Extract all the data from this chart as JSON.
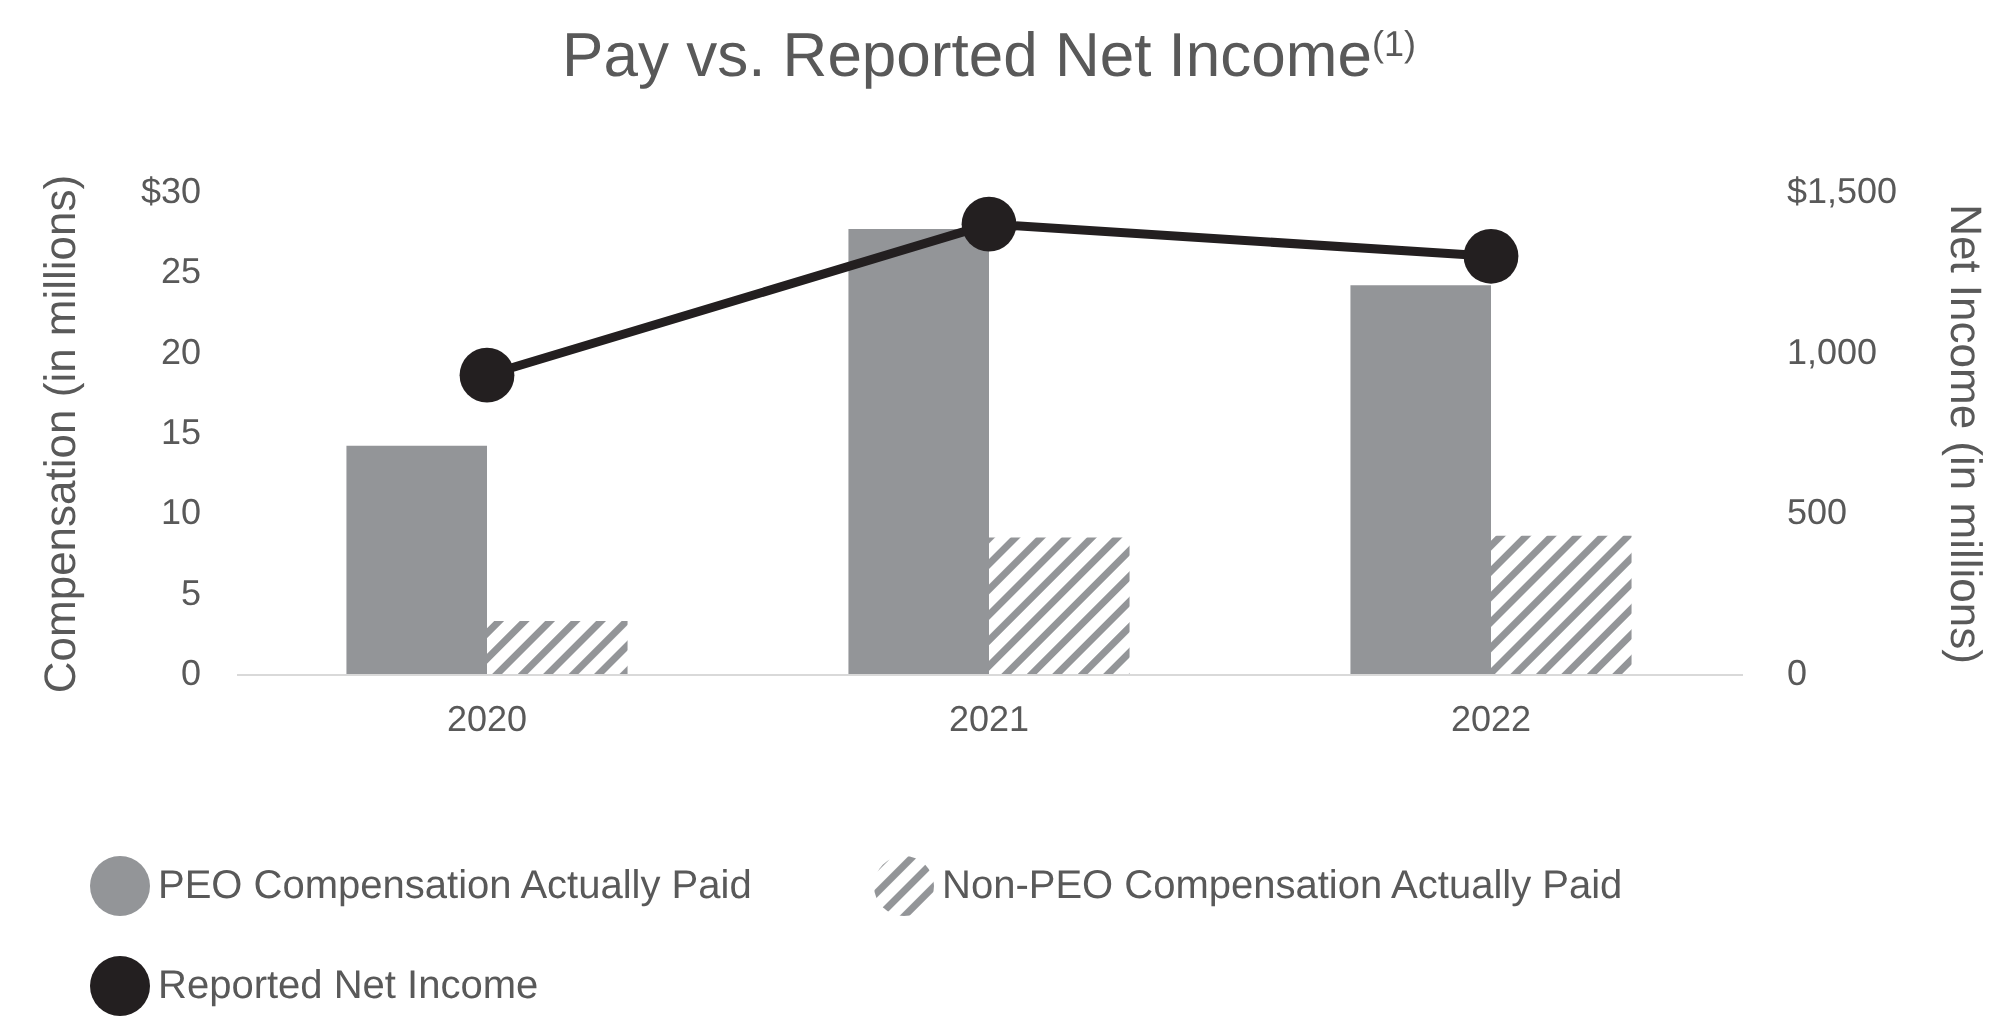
{
  "chart_data": {
    "type": "bar",
    "title": "Pay vs. Reported Net Income$^{(1)}$",
    "ylabel": "Compensation (in millions)",
    "y2label": "Net Income (in millions)",
    "categories": [
      "2020",
      "2021",
      "2022"
    ],
    "series": [
      {
        "name": "PEO Compensation Actually Paid",
        "color": "#939598",
        "values": [
          14.2,
          27.7,
          24.2
        ]
      },
      {
        "name": "Non-PEO Compensation Actually Paid",
        "color": "#939598",
        "values": [
          3.3,
          8.5,
          8.6
        ]
      },
      {
        "name": "Reported Net Income",
        "type": "line",
        "axis": "y2",
        "color": "#231f20",
        "values": [
          930,
          1400,
          1300
        ]
      }
    ],
    "ylim": [
      0,
      30
    ],
    "yticks": [
      0,
      5,
      10,
      15,
      20,
      25,
      {
        "value": 30,
        "label": "$30"
      }
    ],
    "y2lim": [
      0,
      1500
    ],
    "y2ticks": [
      0,
      500,
      {
        "value": 1000,
        "label": "1,000"
      },
      {
        "value": 1500,
        "label": "$1,500"
      }
    ],
    "marker": "circle",
    "grid": false,
    "legend": "bottom"
  }
}
